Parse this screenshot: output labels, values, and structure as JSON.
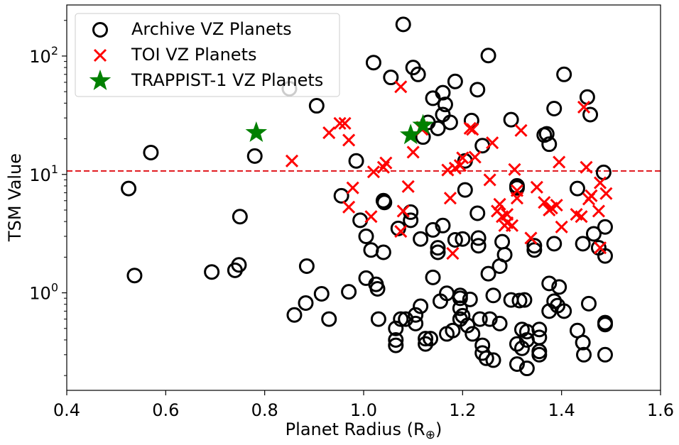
{
  "chart_data": {
    "type": "scatter",
    "xlabel": "Planet Radius (R",
    "xlabel_sub": "⊕",
    "xlabel_close": ")",
    "ylabel": "TSM Value",
    "xlim": [
      0.4,
      1.6
    ],
    "ylim": [
      0.15,
      270
    ],
    "yscale": "log",
    "grid": false,
    "legend_position": "top-left",
    "x_ticks": [
      "0.4",
      "0.6",
      "0.8",
      "1.0",
      "1.2",
      "1.4",
      "1.6"
    ],
    "y_ticks": [
      {
        "value": 1,
        "base": "10",
        "exp": "0"
      },
      {
        "value": 10,
        "base": "10",
        "exp": "1"
      },
      {
        "value": 100,
        "base": "10",
        "exp": "2"
      }
    ],
    "threshold": {
      "value": 10.7,
      "color": "#e0141b",
      "style": "dashed"
    },
    "series": [
      {
        "name": "Archive VZ Planets",
        "marker": "open-circle",
        "color": "#000000",
        "points": [
          [
            0.525,
            7.6
          ],
          [
            0.537,
            1.4
          ],
          [
            0.57,
            15.3
          ],
          [
            0.693,
            1.5
          ],
          [
            0.74,
            1.55
          ],
          [
            0.748,
            1.72
          ],
          [
            0.75,
            4.4
          ],
          [
            0.78,
            14.3
          ],
          [
            0.85,
            53
          ],
          [
            0.86,
            0.65
          ],
          [
            0.883,
            0.82
          ],
          [
            0.885,
            1.68
          ],
          [
            0.905,
            38
          ],
          [
            0.915,
            0.98
          ],
          [
            0.93,
            0.6
          ],
          [
            0.955,
            6.6
          ],
          [
            0.97,
            1.02
          ],
          [
            0.985,
            13
          ],
          [
            0.993,
            4.1
          ],
          [
            1.005,
            1.33
          ],
          [
            1.005,
            3.0
          ],
          [
            1.015,
            2.3
          ],
          [
            1.02,
            88
          ],
          [
            1.025,
            1.18
          ],
          [
            1.028,
            1.08
          ],
          [
            1.03,
            0.6
          ],
          [
            1.04,
            2.2
          ],
          [
            1.04,
            6.0
          ],
          [
            1.042,
            5.8
          ],
          [
            1.055,
            66
          ],
          [
            1.065,
            0.5
          ],
          [
            1.065,
            0.4
          ],
          [
            1.065,
            0.36
          ],
          [
            1.07,
            3.5
          ],
          [
            1.075,
            0.6
          ],
          [
            1.08,
            185
          ],
          [
            1.085,
            0.6
          ],
          [
            1.095,
            4.8
          ],
          [
            1.095,
            4.1
          ],
          [
            1.1,
            80
          ],
          [
            1.105,
            0.65
          ],
          [
            1.105,
            0.55
          ],
          [
            1.11,
            70
          ],
          [
            1.115,
            2.85
          ],
          [
            1.115,
            0.77
          ],
          [
            1.12,
            20.7
          ],
          [
            1.125,
            0.41
          ],
          [
            1.125,
            0.37
          ],
          [
            1.13,
            27.5
          ],
          [
            1.135,
            0.41
          ],
          [
            1.14,
            44
          ],
          [
            1.14,
            3.4
          ],
          [
            1.14,
            1.35
          ],
          [
            1.15,
            24.5
          ],
          [
            1.15,
            2.4
          ],
          [
            1.15,
            2.2
          ],
          [
            1.155,
            0.85
          ],
          [
            1.16,
            49
          ],
          [
            1.16,
            32
          ],
          [
            1.16,
            3.7
          ],
          [
            1.165,
            39
          ],
          [
            1.168,
            0.45
          ],
          [
            1.168,
            0.99
          ],
          [
            1.175,
            27.5
          ],
          [
            1.18,
            0.48
          ],
          [
            1.185,
            61
          ],
          [
            1.185,
            2.8
          ],
          [
            1.195,
            0.95
          ],
          [
            1.195,
            0.9
          ],
          [
            1.195,
            0.74
          ],
          [
            1.195,
            0.6
          ],
          [
            1.2,
            2.85
          ],
          [
            1.2,
            0.64
          ],
          [
            1.205,
            7.4
          ],
          [
            1.205,
            13
          ],
          [
            1.21,
            0.53
          ],
          [
            1.215,
            0.88
          ],
          [
            1.218,
            28.5
          ],
          [
            1.22,
            0.45
          ],
          [
            1.23,
            52
          ],
          [
            1.23,
            4.7
          ],
          [
            1.232,
            2.9
          ],
          [
            1.232,
            2.5
          ],
          [
            1.235,
            0.6
          ],
          [
            1.24,
            17.5
          ],
          [
            1.24,
            0.36
          ],
          [
            1.24,
            0.31
          ],
          [
            1.248,
            0.28
          ],
          [
            1.252,
            101
          ],
          [
            1.252,
            1.45
          ],
          [
            1.255,
            0.6
          ],
          [
            1.262,
            0.95
          ],
          [
            1.262,
            0.27
          ],
          [
            1.275,
            0.55
          ],
          [
            1.275,
            1.68
          ],
          [
            1.28,
            2.7
          ],
          [
            1.285,
            2.1
          ],
          [
            1.298,
            29
          ],
          [
            1.298,
            0.87
          ],
          [
            1.31,
            8
          ],
          [
            1.31,
            7.7
          ],
          [
            1.31,
            0.37
          ],
          [
            1.31,
            0.25
          ],
          [
            1.315,
            0.86
          ],
          [
            1.32,
            0.49
          ],
          [
            1.32,
            0.34
          ],
          [
            1.325,
            0.87
          ],
          [
            1.33,
            0.47
          ],
          [
            1.33,
            0.4
          ],
          [
            1.33,
            0.23
          ],
          [
            1.345,
            2.5
          ],
          [
            1.345,
            2.3
          ],
          [
            1.355,
            0.49
          ],
          [
            1.355,
            0.42
          ],
          [
            1.355,
            0.32
          ],
          [
            1.355,
            0.3
          ],
          [
            1.365,
            21.5
          ],
          [
            1.37,
            22
          ],
          [
            1.375,
            18
          ],
          [
            1.375,
            1.2
          ],
          [
            1.375,
            0.7
          ],
          [
            1.385,
            36
          ],
          [
            1.385,
            2.6
          ],
          [
            1.385,
            0.85
          ],
          [
            1.392,
            0.78
          ],
          [
            1.395,
            1.12
          ],
          [
            1.405,
            70
          ],
          [
            1.405,
            0.7
          ],
          [
            1.432,
            7.6
          ],
          [
            1.432,
            0.48
          ],
          [
            1.443,
            2.6
          ],
          [
            1.443,
            0.38
          ],
          [
            1.445,
            0.3
          ],
          [
            1.452,
            45
          ],
          [
            1.455,
            0.81
          ],
          [
            1.458,
            32
          ],
          [
            1.465,
            3.15
          ],
          [
            1.475,
            2.4
          ],
          [
            1.485,
            10.4
          ],
          [
            1.488,
            3.6
          ],
          [
            1.488,
            2.05
          ],
          [
            1.488,
            0.56
          ],
          [
            1.488,
            0.54
          ],
          [
            1.488,
            0.3
          ]
        ]
      },
      {
        "name": "TOI VZ Planets",
        "marker": "x",
        "color": "#ff0000",
        "points": [
          [
            0.855,
            13
          ],
          [
            0.93,
            22.5
          ],
          [
            0.952,
            27
          ],
          [
            0.962,
            27
          ],
          [
            0.97,
            19.5
          ],
          [
            0.97,
            5.3
          ],
          [
            0.978,
            7.7
          ],
          [
            1.015,
            4.4
          ],
          [
            1.02,
            10.5
          ],
          [
            1.04,
            11.5
          ],
          [
            1.045,
            12.5
          ],
          [
            1.075,
            3.3
          ],
          [
            1.075,
            55
          ],
          [
            1.08,
            4.9
          ],
          [
            1.09,
            7.9
          ],
          [
            1.1,
            15.4
          ],
          [
            1.118,
            25
          ],
          [
            1.118,
            24
          ],
          [
            1.17,
            10.9
          ],
          [
            1.175,
            6.3
          ],
          [
            1.18,
            2.15
          ],
          [
            1.185,
            11.3
          ],
          [
            1.195,
            11.9
          ],
          [
            1.2,
            13.8
          ],
          [
            1.215,
            24.5
          ],
          [
            1.22,
            24
          ],
          [
            1.225,
            14
          ],
          [
            1.255,
            9
          ],
          [
            1.26,
            18.5
          ],
          [
            1.27,
            4.9
          ],
          [
            1.275,
            5.6
          ],
          [
            1.28,
            4.4
          ],
          [
            1.285,
            3.7
          ],
          [
            1.29,
            4.6
          ],
          [
            1.29,
            3.9
          ],
          [
            1.3,
            3.7
          ],
          [
            1.305,
            11
          ],
          [
            1.31,
            7.3
          ],
          [
            1.31,
            6.3
          ],
          [
            1.318,
            23.5
          ],
          [
            1.338,
            2.9
          ],
          [
            1.35,
            7.8
          ],
          [
            1.365,
            5.8
          ],
          [
            1.375,
            5.0
          ],
          [
            1.38,
            5.2
          ],
          [
            1.39,
            5.5
          ],
          [
            1.395,
            12.7
          ],
          [
            1.4,
            3.6
          ],
          [
            1.43,
            4.6
          ],
          [
            1.44,
            4.4
          ],
          [
            1.445,
            37
          ],
          [
            1.45,
            11.5
          ],
          [
            1.455,
            6.2
          ],
          [
            1.46,
            6.6
          ],
          [
            1.475,
            4.9
          ],
          [
            1.478,
            2.4
          ],
          [
            1.478,
            8.5
          ],
          [
            1.49,
            6.9
          ]
        ]
      },
      {
        "name": "TRAPPIST-1 VZ Planets",
        "marker": "star",
        "color": "#008000",
        "points": [
          [
            0.783,
            22.5
          ],
          [
            1.095,
            21.5
          ],
          [
            1.12,
            26
          ]
        ]
      }
    ]
  }
}
